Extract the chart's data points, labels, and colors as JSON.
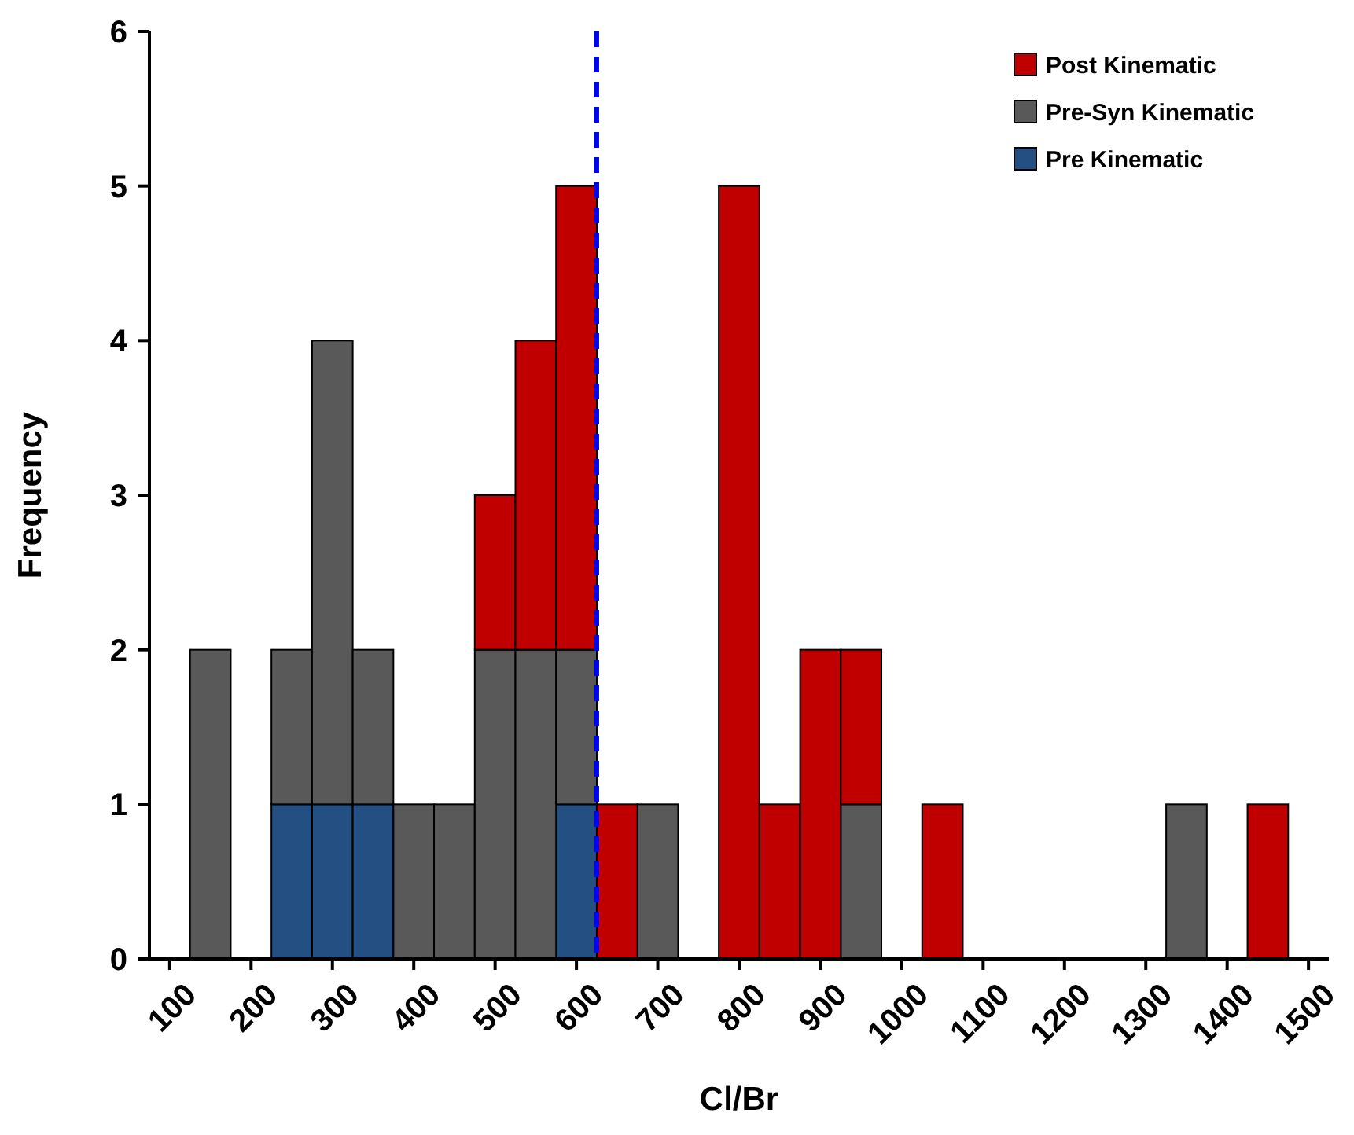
{
  "chart_data": {
    "type": "bar",
    "stacked": true,
    "xlabel": "Cl/Br",
    "ylabel": "Frequency",
    "x": [
      100,
      150,
      200,
      250,
      300,
      350,
      400,
      450,
      500,
      550,
      600,
      650,
      700,
      750,
      800,
      850,
      900,
      950,
      1000,
      1050,
      1100,
      1150,
      1200,
      1250,
      1300,
      1350,
      1400,
      1450,
      1500
    ],
    "xlim": [
      75,
      1525
    ],
    "xticks": [
      100,
      200,
      300,
      400,
      500,
      600,
      700,
      800,
      900,
      1000,
      1100,
      1200,
      1300,
      1400,
      1500
    ],
    "ylim": [
      0,
      6
    ],
    "yticks": [
      0,
      1,
      2,
      3,
      4,
      5,
      6
    ],
    "grid": false,
    "legend": "top right",
    "series": [
      {
        "name": "Pre Kinematic",
        "color": "#244f82",
        "values": [
          0,
          0,
          0,
          1,
          1,
          1,
          0,
          0,
          0,
          0,
          1,
          0,
          0,
          0,
          0,
          0,
          0,
          0,
          0,
          0,
          0,
          0,
          0,
          0,
          0,
          0,
          0,
          0,
          0
        ]
      },
      {
        "name": "Pre-Syn Kinematic",
        "color": "#595959",
        "values": [
          0,
          2,
          0,
          1,
          3,
          1,
          1,
          1,
          2,
          2,
          1,
          0,
          1,
          0,
          0,
          0,
          0,
          1,
          0,
          0,
          0,
          0,
          0,
          0,
          0,
          1,
          0,
          0,
          0
        ]
      },
      {
        "name": "Post Kinematic",
        "color": "#c00000",
        "values": [
          0,
          0,
          0,
          0,
          0,
          0,
          0,
          0,
          1,
          2,
          3,
          1,
          0,
          0,
          5,
          1,
          2,
          1,
          0,
          1,
          0,
          0,
          0,
          0,
          0,
          0,
          0,
          1,
          0
        ]
      }
    ],
    "ref_lines": [
      {
        "axis": "x",
        "value": 625,
        "color": "#0000ff",
        "line_style": "dashed"
      }
    ]
  }
}
